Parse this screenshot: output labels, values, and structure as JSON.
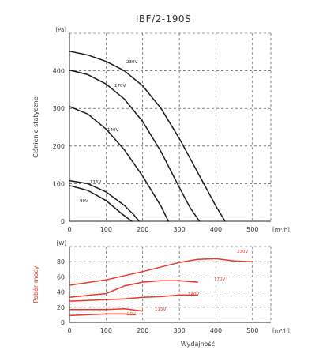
{
  "chart_data": [
    {
      "type": "line",
      "title": "IBF/2-190S",
      "ylabel": "Ciśnienie statyczne",
      "y_unit": "[Pa]",
      "x_unit": "[m³/h]",
      "xlim": [
        0,
        550
      ],
      "ylim": [
        0,
        500
      ],
      "xticks": [
        "0",
        "100",
        "200",
        "300",
        "400",
        "500"
      ],
      "yticks": [
        "0",
        "100",
        "200",
        "300",
        "400"
      ],
      "grid": "dashed",
      "color": "#1a1a1a",
      "series": [
        {
          "name": "230V",
          "x": [
            0,
            50,
            100,
            150,
            200,
            250,
            300,
            350,
            400,
            425
          ],
          "y": [
            452,
            442,
            425,
            400,
            360,
            300,
            220,
            130,
            40,
            0
          ]
        },
        {
          "name": "170V",
          "x": [
            0,
            50,
            100,
            150,
            200,
            250,
            300,
            330,
            355
          ],
          "y": [
            402,
            390,
            365,
            325,
            265,
            185,
            90,
            35,
            0
          ]
        },
        {
          "name": "140V",
          "x": [
            0,
            50,
            100,
            150,
            200,
            250,
            270
          ],
          "y": [
            305,
            285,
            245,
            190,
            120,
            40,
            0
          ]
        },
        {
          "name": "115V",
          "x": [
            0,
            50,
            100,
            150,
            175,
            190
          ],
          "y": [
            108,
            100,
            78,
            42,
            18,
            0
          ]
        },
        {
          "name": "90V",
          "x": [
            0,
            50,
            100,
            140,
            170
          ],
          "y": [
            95,
            82,
            55,
            22,
            0
          ]
        }
      ]
    },
    {
      "type": "line",
      "ylabel": "Pobór mocy",
      "y_unit": "[W]",
      "x_unit": "[m³/h]",
      "xlabel": "Wydajność",
      "xlim": [
        0,
        550
      ],
      "ylim": [
        0,
        100
      ],
      "xticks": [
        "0",
        "100",
        "200",
        "300",
        "400",
        "500"
      ],
      "yticks": [
        "0",
        "20",
        "40",
        "60",
        "80"
      ],
      "grid": "dashed",
      "color": "#e8382a",
      "series": [
        {
          "name": "230V",
          "x": [
            0,
            100,
            200,
            300,
            350,
            400,
            450,
            500
          ],
          "y": [
            49,
            56,
            67,
            79,
            83,
            84,
            81,
            80
          ]
        },
        {
          "name": "170V",
          "x": [
            0,
            100,
            150,
            200,
            250,
            300,
            350
          ],
          "y": [
            33,
            38,
            48,
            53,
            55,
            55,
            53
          ]
        },
        {
          "name": "140V",
          "x": [
            0,
            100,
            150,
            200,
            250,
            300,
            350
          ],
          "y": [
            28,
            30,
            31,
            33,
            34,
            36,
            36
          ]
        },
        {
          "name": "115V",
          "x": [
            0,
            50,
            100,
            150,
            200
          ],
          "y": [
            17,
            17,
            17,
            18,
            15
          ]
        },
        {
          "name": "90V",
          "x": [
            0,
            50,
            100,
            150,
            180
          ],
          "y": [
            9,
            10,
            11,
            11,
            10
          ]
        }
      ]
    }
  ]
}
